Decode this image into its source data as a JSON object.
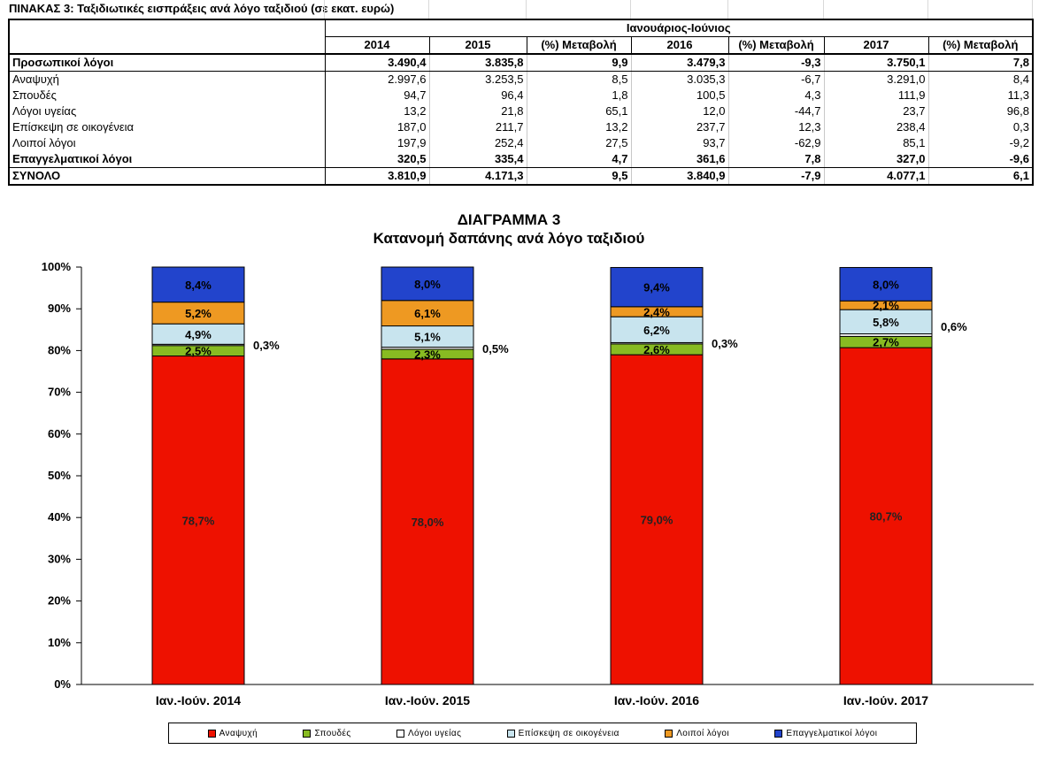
{
  "table": {
    "title": "ΠΙΝΑΚΑΣ 3: Ταξιδιωτικές εισπράξεις ανά λόγο ταξιδιού (σε εκατ. ευρώ)",
    "period": "Ιανουάριος-Ιούνιος",
    "columns": [
      "2014",
      "2015",
      "(%) Μεταβολή",
      "2016",
      "(%) Μεταβολή",
      "2017",
      "(%) Μεταβολή"
    ],
    "rows": [
      {
        "label": "Προσωπικοί λόγοι",
        "bold": true,
        "values": [
          "3.490,4",
          "3.835,8",
          "9,9",
          "3.479,3",
          "-9,3",
          "3.750,1",
          "7,8"
        ]
      },
      {
        "label": "Αναψυχή",
        "bold": false,
        "values": [
          "2.997,6",
          "3.253,5",
          "8,5",
          "3.035,3",
          "-6,7",
          "3.291,0",
          "8,4"
        ]
      },
      {
        "label": "Σπουδές",
        "bold": false,
        "values": [
          "94,7",
          "96,4",
          "1,8",
          "100,5",
          "4,3",
          "111,9",
          "11,3"
        ]
      },
      {
        "label": "Λόγοι υγείας",
        "bold": false,
        "values": [
          "13,2",
          "21,8",
          "65,1",
          "12,0",
          "-44,7",
          "23,7",
          "96,8"
        ]
      },
      {
        "label": "Επίσκεψη σε οικογένεια",
        "bold": false,
        "values": [
          "187,0",
          "211,7",
          "13,2",
          "237,7",
          "12,3",
          "238,4",
          "0,3"
        ]
      },
      {
        "label": "Λοιποί λόγοι",
        "bold": false,
        "values": [
          "197,9",
          "252,4",
          "27,5",
          "93,7",
          "-62,9",
          "85,1",
          "-9,2"
        ]
      },
      {
        "label": "Επαγγελματικοί λόγοι",
        "bold": true,
        "values": [
          "320,5",
          "335,4",
          "4,7",
          "361,6",
          "7,8",
          "327,0",
          "-9,6"
        ]
      },
      {
        "label": "ΣΥΝΟΛΟ",
        "bold": true,
        "values": [
          "3.810,9",
          "4.171,3",
          "9,5",
          "3.840,9",
          "-7,9",
          "4.077,1",
          "6,1"
        ]
      }
    ]
  },
  "chart_data": {
    "type": "bar",
    "stacked": true,
    "title": "ΔΙΑΓΡΑΜΜΑ 3",
    "subtitle": "Κατανομή δαπάνης ανά λόγο ταξιδιού",
    "categories": [
      "Ιαν.-Ιούν. 2014",
      "Ιαν.-Ιούν. 2015",
      "Ιαν.-Ιούν. 2016",
      "Ιαν.-Ιούν. 2017"
    ],
    "ylim": [
      0,
      100
    ],
    "yticks": [
      "0%",
      "10%",
      "20%",
      "30%",
      "40%",
      "50%",
      "60%",
      "70%",
      "80%",
      "90%",
      "100%"
    ],
    "series": [
      {
        "name": "Αναψυχή",
        "color": "#ee1100",
        "values": [
          78.7,
          78.0,
          79.0,
          80.7
        ],
        "labels": [
          "78,7%",
          "78,0%",
          "79,0%",
          "80,7%"
        ]
      },
      {
        "name": "Σπουδές",
        "color": "#88bb22",
        "values": [
          2.5,
          2.3,
          2.6,
          2.7
        ],
        "labels": [
          "2,5%",
          "2,3%",
          "2,6%",
          "2,7%"
        ]
      },
      {
        "name": "Λόγοι υγείας",
        "color": "#ffffff",
        "values": [
          0.3,
          0.5,
          0.3,
          0.6
        ],
        "labels": [
          "0,3%",
          "0,5%",
          "0,3%",
          "0,6%"
        ]
      },
      {
        "name": "Επίσκεψη σε οικογένεια",
        "color": "#c8e4ee",
        "values": [
          4.9,
          5.1,
          6.2,
          5.8
        ],
        "labels": [
          "4,9%",
          "5,1%",
          "6,2%",
          "5,8%"
        ]
      },
      {
        "name": "Λοιποί λόγοι",
        "color": "#ee9922",
        "values": [
          5.2,
          6.1,
          2.4,
          2.1
        ],
        "labels": [
          "5,2%",
          "6,1%",
          "2,4%",
          "2,1%"
        ]
      },
      {
        "name": "Επαγγελματικοί λόγοι",
        "color": "#2244cc",
        "values": [
          8.4,
          8.0,
          9.4,
          8.0
        ],
        "labels": [
          "8,4%",
          "8,0%",
          "9,4%",
          "8,0%"
        ]
      }
    ],
    "legend_position": "bottom",
    "grid": false
  }
}
